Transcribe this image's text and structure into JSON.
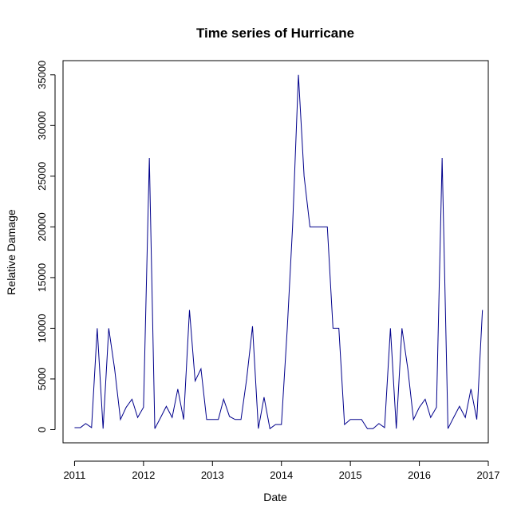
{
  "chart_data": {
    "type": "line",
    "title": "Time series of Hurricane",
    "xlabel": "Date",
    "ylabel": "Relative Damage",
    "x_ticks": [
      "2011",
      "2012",
      "2013",
      "2014",
      "2015",
      "2016",
      "2017"
    ],
    "y_ticks": [
      "0",
      "5000",
      "10000",
      "15000",
      "20000",
      "25000",
      "30000",
      "35000"
    ],
    "xlim": [
      "2010-11-01",
      "2017-01-01"
    ],
    "ylim": [
      -1300,
      36400
    ],
    "grid": false,
    "line_color": "#00008B",
    "series": [
      {
        "x": [
          "2011-01-01",
          "2011-02-01",
          "2011-03-01",
          "2011-04-01",
          "2011-05-01",
          "2011-06-01",
          "2011-07-01",
          "2011-08-01",
          "2011-09-01",
          "2011-10-01",
          "2011-11-01",
          "2011-12-01",
          "2012-01-01",
          "2012-02-01",
          "2012-03-01",
          "2012-04-01",
          "2012-05-01",
          "2012-06-01",
          "2012-07-01",
          "2012-08-01",
          "2012-09-01",
          "2012-10-01",
          "2012-11-01",
          "2012-12-01",
          "2013-01-01",
          "2013-02-01",
          "2013-03-01",
          "2013-04-01",
          "2013-05-01",
          "2013-06-01",
          "2013-07-01",
          "2013-08-01",
          "2013-09-01",
          "2013-10-01",
          "2013-11-01",
          "2013-12-01",
          "2014-01-01",
          "2014-02-01",
          "2014-03-01",
          "2014-04-01",
          "2014-05-01",
          "2014-06-01",
          "2014-07-01",
          "2014-08-01",
          "2014-09-01",
          "2014-10-01",
          "2014-11-01",
          "2014-12-01",
          "2015-01-01",
          "2015-02-01",
          "2015-03-01",
          "2015-04-01",
          "2015-05-01",
          "2015-06-01",
          "2015-07-01",
          "2015-08-01",
          "2015-09-01",
          "2015-10-01",
          "2015-11-01",
          "2015-12-01",
          "2016-01-01",
          "2016-02-01",
          "2016-03-01",
          "2016-04-01",
          "2016-05-01",
          "2016-06-01",
          "2016-07-01",
          "2016-08-01",
          "2016-09-01",
          "2016-10-01",
          "2016-11-01",
          "2016-12-01"
        ],
        "values": [
          200,
          200,
          600,
          200,
          10000,
          100,
          10000,
          6000,
          1000,
          2200,
          3000,
          1200,
          2200,
          26800,
          100,
          1200,
          2300,
          1200,
          4000,
          1000,
          11800,
          4800,
          6000,
          1000,
          1000,
          1000,
          3000,
          1300,
          1000,
          1000,
          5000,
          10200,
          100,
          3200,
          100,
          500,
          500,
          10000,
          20000,
          35000,
          25000,
          20000,
          20000,
          20000,
          20000,
          10000,
          10000,
          500,
          1000,
          1000,
          1000,
          100,
          100,
          600,
          200,
          10000,
          100,
          10000,
          6000,
          1000,
          2200,
          3000,
          1200,
          2200,
          26800,
          100,
          1200,
          2300,
          1200,
          4000,
          1000,
          11800
        ]
      }
    ]
  }
}
